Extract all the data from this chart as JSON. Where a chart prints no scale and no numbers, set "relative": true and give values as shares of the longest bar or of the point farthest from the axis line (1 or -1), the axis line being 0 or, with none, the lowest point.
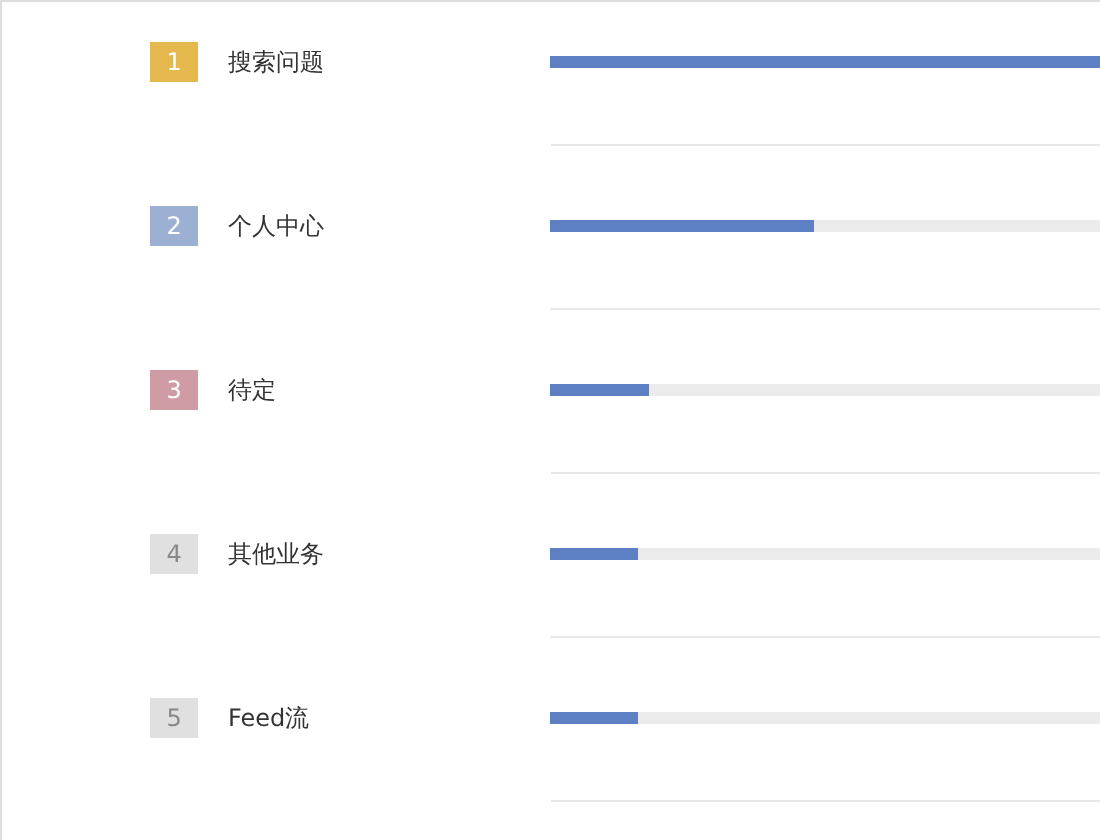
{
  "chart_data": {
    "type": "bar",
    "orientation": "horizontal",
    "relative": true,
    "stacked": true,
    "categories": [
      "搜索问题",
      "个人中心",
      "待定",
      "其他业务",
      "Feed流"
    ],
    "series": [
      {
        "color": "#5d80c5",
        "values": [
          1,
          0.48,
          0.18,
          0.16,
          0.16
        ]
      },
      {
        "color": "#ebebeb",
        "values": [
          0,
          0.52,
          0.82,
          0.84,
          0.84
        ]
      }
    ],
    "annotations": [
      "1",
      "2",
      "3",
      "4",
      "5"
    ],
    "grid": "y"
  }
}
